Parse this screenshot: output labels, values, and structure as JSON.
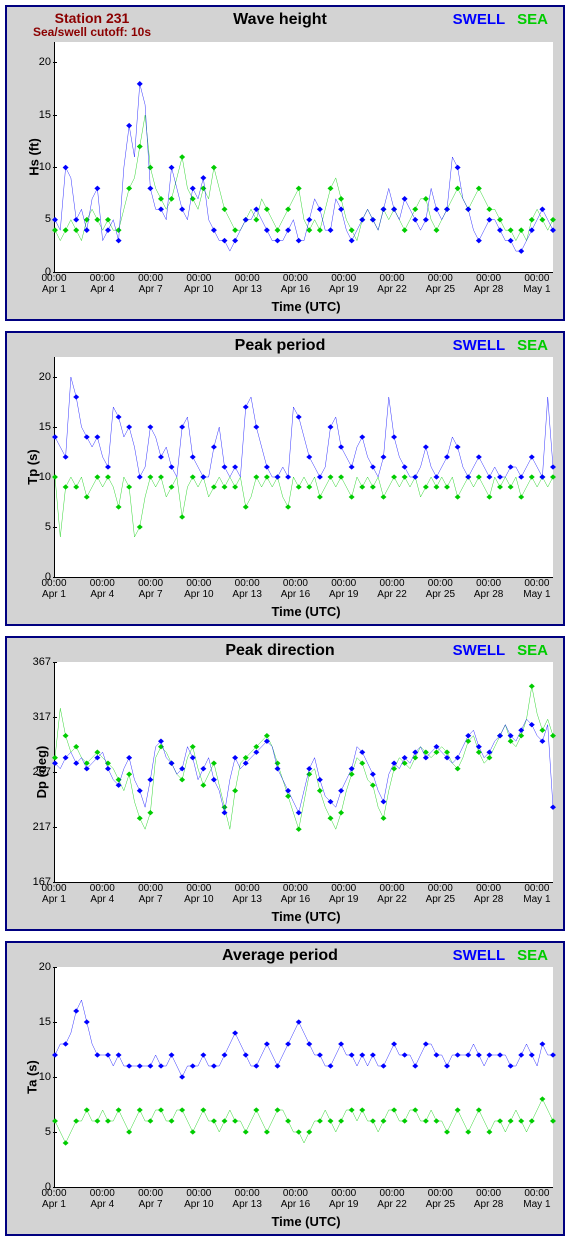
{
  "station": {
    "name": "Station 231",
    "cutoff": "Sea/swell cutoff: 10s"
  },
  "legend": {
    "swell": "SWELL",
    "sea": "SEA"
  },
  "x_axis": {
    "label": "Time (UTC)",
    "min": 0,
    "max": 31,
    "ticks": [
      {
        "v": 0,
        "t1": "00:00",
        "t2": "Apr 1"
      },
      {
        "v": 3,
        "t1": "00:00",
        "t2": "Apr 4"
      },
      {
        "v": 6,
        "t1": "00:00",
        "t2": "Apr 7"
      },
      {
        "v": 9,
        "t1": "00:00",
        "t2": "Apr 10"
      },
      {
        "v": 12,
        "t1": "00:00",
        "t2": "Apr 13"
      },
      {
        "v": 15,
        "t1": "00:00",
        "t2": "Apr 16"
      },
      {
        "v": 18,
        "t1": "00:00",
        "t2": "Apr 19"
      },
      {
        "v": 21,
        "t1": "00:00",
        "t2": "Apr 22"
      },
      {
        "v": 24,
        "t1": "00:00",
        "t2": "Apr 25"
      },
      {
        "v": 27,
        "t1": "00:00",
        "t2": "Apr 28"
      },
      {
        "v": 30,
        "t1": "00:00",
        "t2": "May 1"
      }
    ]
  },
  "colors": {
    "swell": "#0000ff",
    "sea": "#00cc00",
    "panel_bg": "#d3d3d3",
    "plot_bg": "#ffffff",
    "border": "#000080"
  },
  "panels": [
    {
      "id": "wave_height",
      "title": "Wave height",
      "ylabel": "Hs (ft)",
      "show_station": true,
      "ylim": [
        0,
        22
      ],
      "yticks": [
        0,
        5,
        10,
        15,
        20
      ],
      "swell": [
        5,
        4,
        10,
        9,
        5,
        6,
        4,
        7,
        8,
        3,
        4,
        5,
        3,
        10,
        14,
        11,
        18,
        16,
        8,
        6,
        6,
        5,
        10,
        8,
        6,
        5,
        8,
        7,
        9,
        5,
        4,
        3,
        3,
        2,
        3,
        4,
        5,
        5,
        6,
        5,
        4,
        3,
        3,
        3,
        4,
        5,
        3,
        3,
        5,
        7,
        6,
        4,
        4,
        7,
        6,
        4,
        3,
        4,
        5,
        6,
        5,
        4,
        6,
        8,
        6,
        5,
        7,
        6,
        5,
        4,
        5,
        8,
        6,
        5,
        6,
        11,
        10,
        7,
        6,
        4,
        3,
        4,
        5,
        5,
        4,
        3,
        3,
        2,
        2,
        3,
        4,
        5,
        6,
        5,
        4
      ],
      "sea": [
        4,
        3,
        4,
        5,
        4,
        3,
        5,
        6,
        5,
        4,
        5,
        4,
        4,
        6,
        8,
        9,
        12,
        15,
        10,
        8,
        7,
        6,
        7,
        9,
        11,
        8,
        7,
        6,
        8,
        7,
        10,
        8,
        6,
        5,
        4,
        4,
        5,
        6,
        5,
        7,
        6,
        5,
        4,
        5,
        6,
        7,
        8,
        5,
        4,
        5,
        4,
        6,
        8,
        9,
        7,
        5,
        4,
        3,
        5,
        6,
        5,
        4,
        6,
        5,
        6,
        5,
        4,
        5,
        6,
        7,
        7,
        5,
        4,
        5,
        6,
        7,
        8,
        7,
        6,
        7,
        8,
        7,
        6,
        6,
        5,
        4,
        4,
        3,
        4,
        3,
        5,
        6,
        5,
        4,
        5
      ]
    },
    {
      "id": "peak_period",
      "title": "Peak period",
      "ylabel": "Tp (s)",
      "show_station": false,
      "ylim": [
        0,
        22
      ],
      "yticks": [
        0,
        5,
        10,
        15,
        20
      ],
      "swell": [
        14,
        13,
        12,
        20,
        18,
        15,
        14,
        13,
        14,
        12,
        11,
        17,
        16,
        14,
        15,
        13,
        10,
        11,
        15,
        14,
        12,
        13,
        11,
        10,
        15,
        16,
        12,
        11,
        10,
        10,
        13,
        15,
        11,
        10,
        11,
        10,
        17,
        18,
        15,
        13,
        11,
        10,
        10,
        11,
        10,
        17,
        16,
        14,
        12,
        11,
        10,
        11,
        15,
        16,
        13,
        12,
        11,
        13,
        14,
        12,
        11,
        10,
        12,
        18,
        14,
        12,
        11,
        10,
        10,
        11,
        13,
        11,
        10,
        11,
        12,
        14,
        13,
        11,
        10,
        11,
        12,
        11,
        10,
        11,
        10,
        10,
        11,
        11,
        10,
        11,
        12,
        11,
        10,
        18,
        11
      ],
      "sea": [
        10,
        4,
        9,
        10,
        9,
        10,
        8,
        9,
        10,
        9,
        10,
        9,
        7,
        10,
        9,
        4,
        5,
        8,
        10,
        9,
        10,
        8,
        9,
        10,
        6,
        9,
        10,
        9,
        10,
        8,
        9,
        10,
        9,
        10,
        9,
        10,
        7,
        8,
        10,
        9,
        10,
        9,
        10,
        8,
        7,
        10,
        9,
        10,
        9,
        10,
        8,
        9,
        10,
        9,
        10,
        9,
        8,
        10,
        9,
        10,
        9,
        10,
        8,
        9,
        10,
        9,
        10,
        9,
        10,
        8,
        9,
        10,
        9,
        10,
        9,
        10,
        8,
        9,
        10,
        9,
        10,
        9,
        8,
        10,
        9,
        10,
        9,
        10,
        8,
        9,
        10,
        9,
        10,
        9,
        10
      ]
    },
    {
      "id": "peak_direction",
      "title": "Peak direction",
      "ylabel": "Dp (deg)",
      "show_station": false,
      "ylim": [
        167,
        367
      ],
      "yticks": [
        167,
        217,
        267,
        317,
        367
      ],
      "swell": [
        275,
        270,
        280,
        285,
        275,
        280,
        270,
        275,
        280,
        285,
        270,
        260,
        255,
        270,
        280,
        260,
        250,
        235,
        260,
        290,
        295,
        280,
        275,
        265,
        270,
        290,
        280,
        260,
        270,
        280,
        260,
        250,
        230,
        260,
        280,
        270,
        275,
        280,
        285,
        290,
        295,
        290,
        270,
        260,
        250,
        240,
        230,
        250,
        270,
        280,
        260,
        245,
        240,
        235,
        250,
        260,
        270,
        290,
        285,
        275,
        265,
        250,
        240,
        265,
        275,
        270,
        280,
        275,
        285,
        290,
        280,
        285,
        290,
        285,
        280,
        275,
        280,
        290,
        300,
        305,
        290,
        280,
        285,
        295,
        300,
        310,
        300,
        295,
        305,
        315,
        310,
        300,
        295,
        310,
        235
      ],
      "sea": [
        280,
        325,
        300,
        285,
        290,
        280,
        275,
        280,
        285,
        280,
        275,
        270,
        260,
        250,
        265,
        240,
        225,
        215,
        230,
        280,
        290,
        285,
        275,
        265,
        260,
        280,
        290,
        270,
        255,
        265,
        275,
        255,
        235,
        215,
        250,
        275,
        280,
        285,
        290,
        295,
        300,
        290,
        275,
        260,
        245,
        230,
        215,
        240,
        265,
        270,
        250,
        235,
        225,
        215,
        230,
        250,
        265,
        280,
        275,
        260,
        255,
        235,
        225,
        250,
        270,
        280,
        275,
        270,
        280,
        290,
        285,
        280,
        285,
        290,
        285,
        275,
        270,
        280,
        295,
        300,
        285,
        275,
        280,
        290,
        300,
        310,
        295,
        290,
        300,
        315,
        345,
        320,
        305,
        315,
        300
      ]
    },
    {
      "id": "average_period",
      "title": "Average period",
      "ylabel": "Ta (s)",
      "show_station": false,
      "ylim": [
        0,
        20
      ],
      "yticks": [
        0,
        5,
        10,
        15,
        20
      ],
      "swell": [
        12,
        13,
        13,
        14,
        16,
        17,
        15,
        13,
        12,
        12,
        12,
        11,
        12,
        11,
        11,
        11,
        11,
        11,
        11,
        12,
        11,
        11,
        12,
        11,
        10,
        11,
        11,
        11,
        12,
        11,
        11,
        11,
        12,
        13,
        14,
        13,
        12,
        11,
        11,
        12,
        13,
        12,
        11,
        12,
        13,
        14,
        15,
        14,
        13,
        12,
        12,
        11,
        11,
        12,
        13,
        12,
        12,
        11,
        12,
        11,
        12,
        11,
        11,
        12,
        13,
        12,
        12,
        12,
        11,
        12,
        13,
        13,
        12,
        12,
        11,
        12,
        12,
        12,
        12,
        13,
        12,
        11,
        12,
        12,
        12,
        12,
        11,
        11,
        12,
        13,
        12,
        11,
        13,
        12,
        12
      ],
      "sea": [
        6,
        5,
        4,
        5,
        6,
        6,
        7,
        6,
        6,
        7,
        6,
        6,
        7,
        6,
        5,
        6,
        7,
        6,
        6,
        7,
        7,
        6,
        6,
        7,
        7,
        6,
        5,
        6,
        7,
        6,
        6,
        5,
        6,
        7,
        6,
        6,
        5,
        6,
        7,
        6,
        5,
        6,
        7,
        7,
        6,
        5,
        5,
        4,
        5,
        6,
        6,
        7,
        6,
        5,
        6,
        7,
        7,
        6,
        7,
        6,
        6,
        5,
        6,
        7,
        7,
        6,
        6,
        7,
        7,
        6,
        6,
        7,
        6,
        6,
        5,
        6,
        7,
        6,
        5,
        6,
        7,
        6,
        5,
        6,
        6,
        5,
        6,
        7,
        6,
        5,
        6,
        7,
        8,
        7,
        6
      ]
    }
  ]
}
